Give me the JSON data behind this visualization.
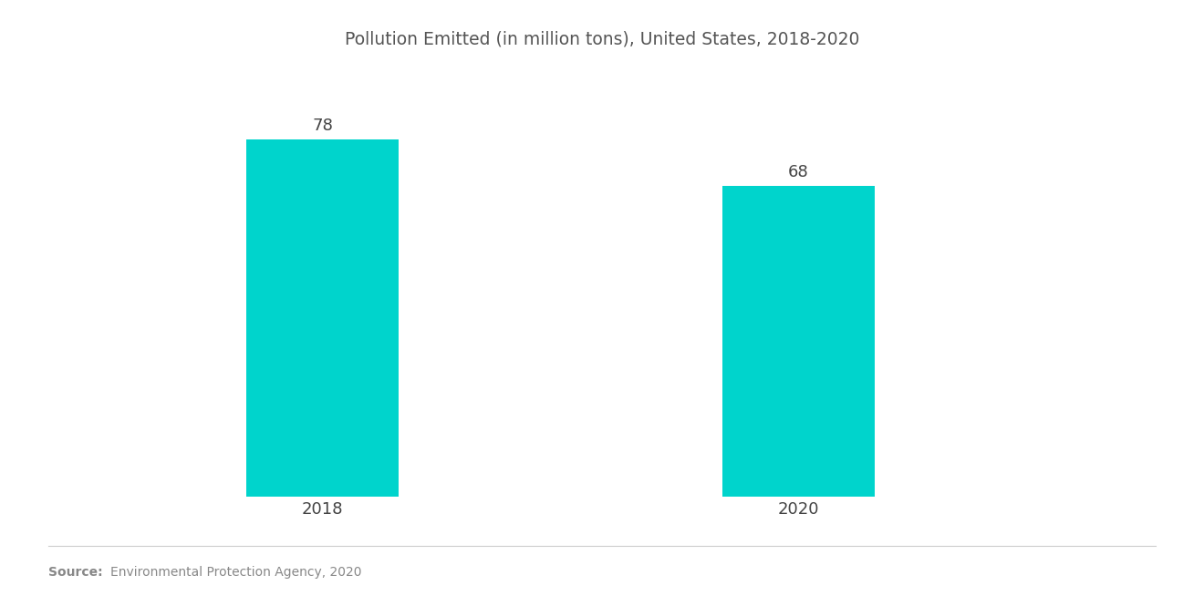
{
  "title": "Pollution Emitted (in million tons), United States, 2018-2020",
  "categories": [
    "2018",
    "2020"
  ],
  "values": [
    78,
    68
  ],
  "bar_color": "#00D4CC",
  "bar_width": 0.32,
  "value_labels": [
    "78",
    "68"
  ],
  "ylim": [
    0,
    90
  ],
  "source_bold": "Source:",
  "source_text": "Environmental Protection Agency, 2020",
  "source_color": "#888888",
  "title_color": "#555555",
  "tick_color": "#444444",
  "bg_color": "#ffffff",
  "title_fontsize": 13.5,
  "label_fontsize": 13,
  "value_fontsize": 13,
  "source_fontsize": 10,
  "bar_positions": [
    1,
    2
  ],
  "xlim": [
    0.5,
    2.75
  ]
}
